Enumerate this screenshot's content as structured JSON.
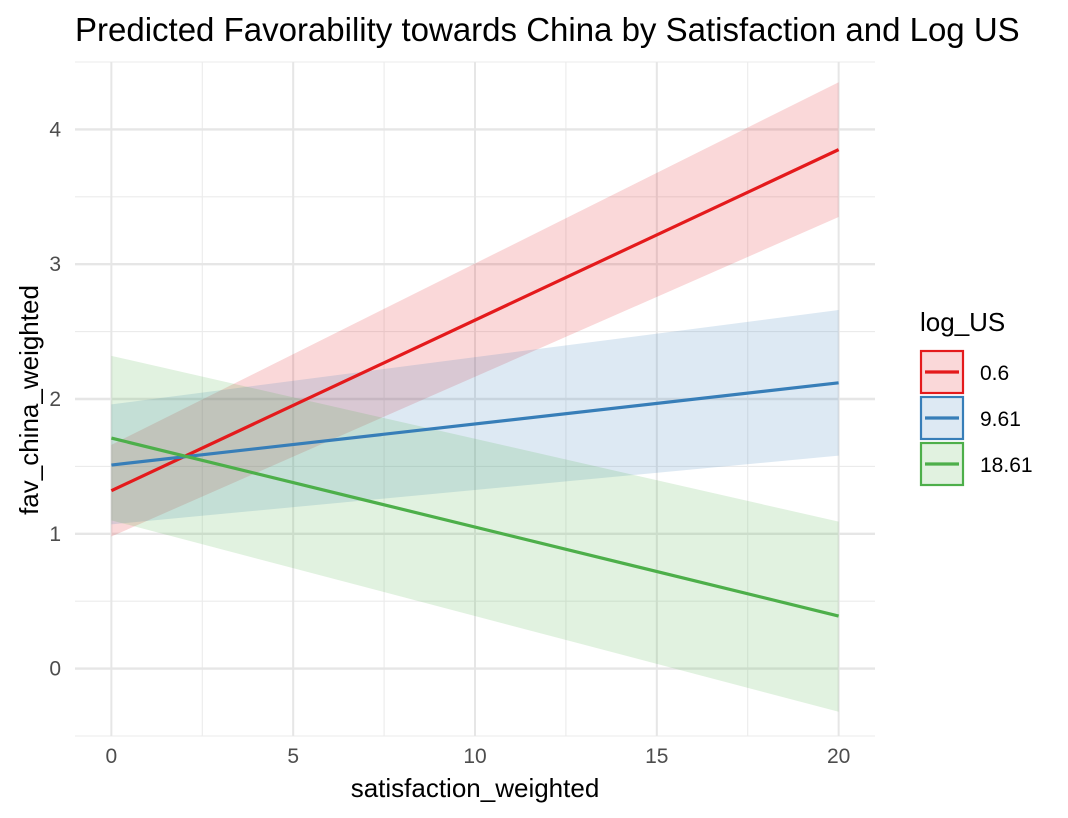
{
  "chart_data": {
    "type": "line",
    "title": "Predicted Favorability towards China by Satisfaction and Log US",
    "xlabel": "satisfaction_weighted",
    "ylabel": "fav_china_weighted",
    "xlim": [
      -1,
      21
    ],
    "ylim": [
      -0.5,
      4.5
    ],
    "x_ticks": [
      0,
      5,
      10,
      15,
      20
    ],
    "x_tick_labels": [
      "0",
      "5",
      "10",
      "15",
      "20"
    ],
    "y_ticks": [
      0,
      1,
      2,
      3,
      4
    ],
    "y_tick_labels": [
      "0",
      "1",
      "2",
      "3",
      "4"
    ],
    "grid": true,
    "legend": {
      "title": "log_US",
      "placement": "right"
    },
    "series": [
      {
        "name": "0.6",
        "color": "#e41a1c",
        "x": [
          0,
          20
        ],
        "y": [
          1.32,
          3.85
        ],
        "lower": [
          0.98,
          3.35
        ],
        "upper": [
          1.66,
          4.35
        ]
      },
      {
        "name": "9.61",
        "color": "#377eb8",
        "x": [
          0,
          20
        ],
        "y": [
          1.51,
          2.12
        ],
        "lower": [
          1.07,
          1.58
        ],
        "upper": [
          1.96,
          2.66
        ]
      },
      {
        "name": "18.61",
        "color": "#4daf4a",
        "x": [
          0,
          20
        ],
        "y": [
          1.71,
          0.39
        ],
        "lower": [
          1.1,
          -0.32
        ],
        "upper": [
          2.32,
          1.09
        ]
      }
    ]
  }
}
